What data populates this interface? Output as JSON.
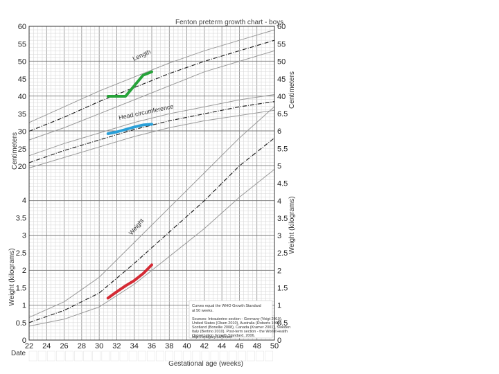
{
  "chart_data": {
    "type": "line",
    "title": "Fenton preterm growth chart - boys",
    "xlabel": "Gestational age (weeks)",
    "ylabel_left_top": "Centimeters",
    "ylabel_right_top": "Centimeters",
    "ylabel_left_bottom": "Weight (kilograms)",
    "ylabel_right_bottom": "Weight (kilograms)",
    "date_label": "Date",
    "x_range": [
      22,
      50
    ],
    "x_ticks": [
      22,
      24,
      26,
      28,
      30,
      32,
      34,
      36,
      38,
      40,
      42,
      44,
      46,
      48,
      50
    ],
    "cm_ticks_left": [
      20,
      25,
      30,
      35,
      40,
      45,
      50,
      55,
      60
    ],
    "cm_ticks_right": [
      40,
      45,
      50,
      55,
      60
    ],
    "kg_ticks_left": [
      0,
      0.5,
      1,
      1.5,
      2,
      2.5,
      3,
      3.5,
      4
    ],
    "kg_ticks_right": [
      0,
      0.5,
      1,
      1.5,
      2,
      2.5,
      3,
      3.5,
      4,
      4.5,
      5,
      5.5,
      6,
      6.5
    ],
    "grid": true,
    "curve_labels": {
      "length": "Length",
      "head": "Head circumference",
      "weight": "Weight"
    },
    "notes": [
      "Curves equal the WHO Growth Standard",
      "at 50 weeks.",
      "Sources: Intrauterine section - Germany (Voigt 2010),",
      "United States (Olsen 2010), Australia (Roberts 1999),",
      "Scotland (Bonellie 2008), Canada (Kramer 2001), Sweden",
      "Italy (Bertino 2010). Post-term section - the World Health",
      "Organization Growth Standard, 2006.",
      "http://ucalgary.ca/fenton"
    ],
    "percentile_curves": {
      "length_cm": {
        "x": [
          22,
          26,
          30,
          34,
          38,
          42,
          46,
          50
        ],
        "p3": [
          27.5,
          31,
          35,
          39,
          43,
          47,
          50,
          53
        ],
        "p50": [
          30,
          34,
          38.5,
          42.5,
          46.5,
          50,
          53,
          56
        ],
        "p97": [
          32.5,
          37,
          41.5,
          45.5,
          49.5,
          53,
          56,
          59
        ]
      },
      "head_cm": {
        "x": [
          22,
          26,
          30,
          34,
          38,
          42,
          46,
          50
        ],
        "p3": [
          19.5,
          22.5,
          25.5,
          28.5,
          31,
          33,
          34.5,
          36
        ],
        "p50": [
          21,
          24.5,
          27.5,
          30.5,
          33,
          35,
          37,
          38.5
        ],
        "p97": [
          23,
          26.5,
          29.5,
          32.5,
          35,
          37,
          39,
          40.5
        ]
      },
      "weight_kg": {
        "x": [
          22,
          26,
          30,
          34,
          38,
          42,
          46,
          50
        ],
        "p3": [
          0.4,
          0.6,
          0.95,
          1.6,
          2.4,
          3.2,
          4.1,
          4.9
        ],
        "p50": [
          0.5,
          0.85,
          1.35,
          2.2,
          3.1,
          4.0,
          5.0,
          5.8
        ],
        "p97": [
          0.65,
          1.1,
          1.8,
          2.8,
          3.8,
          4.8,
          5.8,
          6.7
        ]
      }
    },
    "patient_series": [
      {
        "name": "Length",
        "color": "#27a33a",
        "x": [
          31,
          32,
          33,
          34,
          35,
          36
        ],
        "y": [
          40,
          40,
          40,
          43,
          46,
          47
        ]
      },
      {
        "name": "Head circumference",
        "color": "#2aa0d8",
        "x": [
          31,
          32,
          33,
          34,
          35,
          36
        ],
        "y": [
          29.3,
          29.8,
          30.5,
          31.2,
          31.8,
          32
        ]
      },
      {
        "name": "Weight",
        "color": "#d42a34",
        "x": [
          31,
          32,
          33,
          34,
          35,
          36
        ],
        "y": [
          1.2,
          1.38,
          1.55,
          1.7,
          1.9,
          2.15
        ]
      }
    ]
  }
}
